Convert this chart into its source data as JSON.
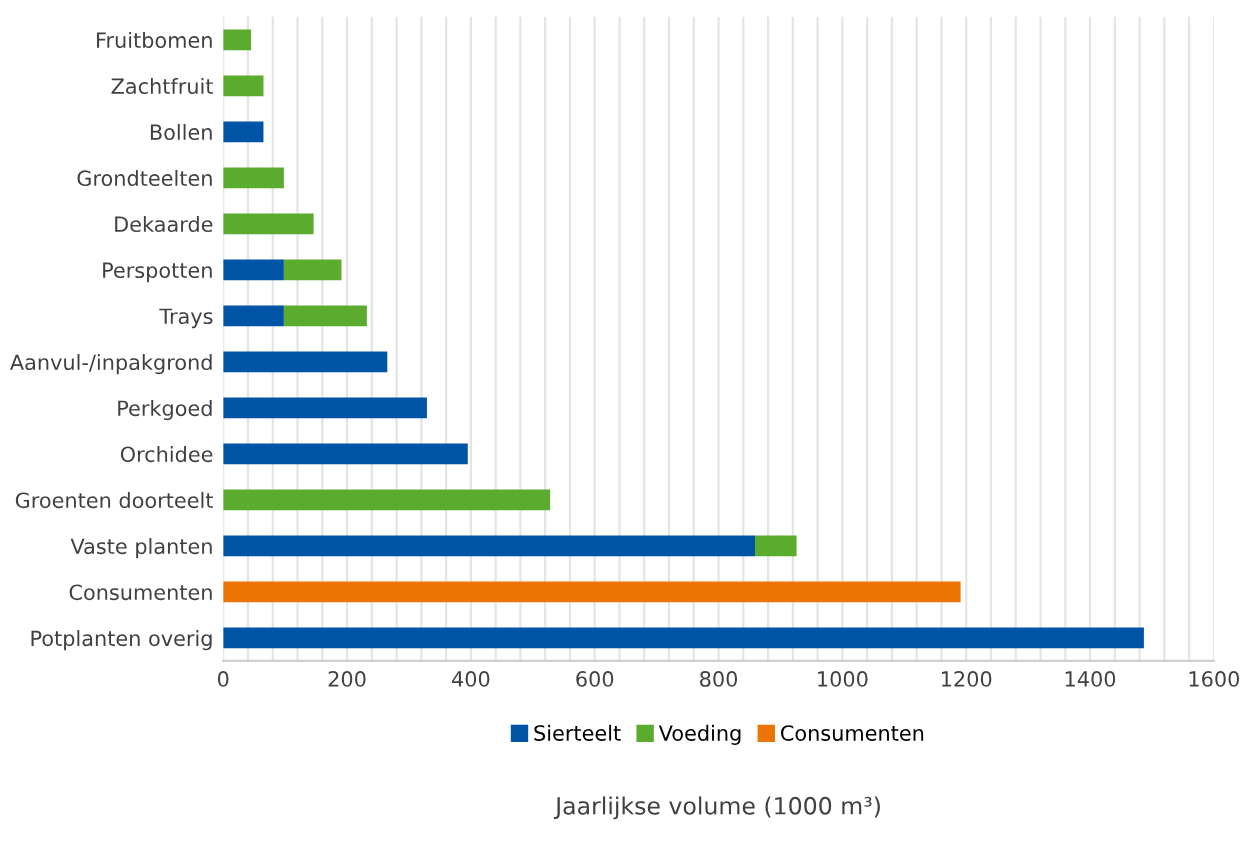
{
  "chart_data": {
    "type": "bar",
    "orientation": "horizontal",
    "stacked": true,
    "xlabel": "Jaarlijkse volume (1000 m³)",
    "categories": [
      "Fruitbomen",
      "Zachtfruit",
      "Bollen",
      "Grondteelten",
      "Dekaarde",
      "Perspotten",
      "Trays",
      "Aanvul-/inpakgrond",
      "Perkgoed",
      "Orchidee",
      "Groenten doorteelt",
      "Vaste planten",
      "Consumenten",
      "Potplanten overig"
    ],
    "series": [
      {
        "name": "Sierteelt",
        "color": "#0054a6",
        "values": [
          null,
          null,
          65,
          null,
          null,
          98,
          98,
          265,
          329,
          395,
          null,
          859,
          null,
          1487
        ]
      },
      {
        "name": "Voeding",
        "color": "#5aab2e",
        "values": [
          45,
          65,
          null,
          98,
          146,
          93,
          134,
          null,
          null,
          null,
          528,
          67,
          null,
          null
        ]
      },
      {
        "name": "Consumenten",
        "color": "#ec7404",
        "values": [
          null,
          null,
          null,
          null,
          null,
          null,
          null,
          null,
          null,
          null,
          null,
          null,
          1191,
          null
        ]
      }
    ],
    "xlim": [
      0,
      1600
    ],
    "xticks": [
      0,
      {
        "value": 40,
        "label": null
      },
      {
        "value": 80,
        "label": null
      },
      {
        "value": 120,
        "label": null
      },
      {
        "value": 160,
        "label": null
      },
      200,
      {
        "value": 240,
        "label": null
      },
      {
        "value": 280,
        "label": null
      },
      {
        "value": 320,
        "label": null
      },
      {
        "value": 360,
        "label": null
      },
      400,
      {
        "value": 440,
        "label": null
      },
      {
        "value": 480,
        "label": null
      },
      {
        "value": 520,
        "label": null
      },
      {
        "value": 560,
        "label": null
      },
      600,
      {
        "value": 640,
        "label": null
      },
      {
        "value": 680,
        "label": null
      },
      {
        "value": 720,
        "label": null
      },
      {
        "value": 760,
        "label": null
      },
      800,
      {
        "value": 840,
        "label": null
      },
      {
        "value": 880,
        "label": null
      },
      {
        "value": 920,
        "label": null
      },
      {
        "value": 960,
        "label": null
      },
      1000,
      {
        "value": 1040,
        "label": null
      },
      {
        "value": 1080,
        "label": null
      },
      {
        "value": 1120,
        "label": null
      },
      {
        "value": 1160,
        "label": null
      },
      1200,
      {
        "value": 1240,
        "label": null
      },
      {
        "value": 1280,
        "label": null
      },
      {
        "value": 1320,
        "label": null
      },
      {
        "value": 1360,
        "label": null
      },
      1400,
      {
        "value": 1440,
        "label": null
      },
      {
        "value": 1480,
        "label": null
      },
      {
        "value": 1520,
        "label": null
      },
      {
        "value": 1560,
        "label": null
      },
      1600
    ],
    "grid": "x",
    "legend": "bottom"
  }
}
